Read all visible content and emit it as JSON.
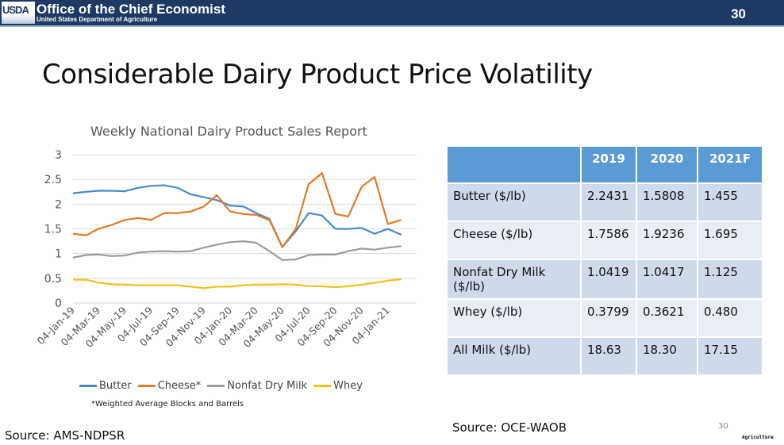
{
  "header": {
    "logo": "USDA",
    "org": "Office of the Chief Economist",
    "dept": "United States Department of Agriculture",
    "page": "30"
  },
  "slide_title": "Considerable Dairy Product Price Volatility",
  "chart_data": {
    "type": "line",
    "title": "Weekly National Dairy Product Sales Report",
    "xlabel": "",
    "ylabel": "",
    "ylim": [
      0,
      3
    ],
    "yticks": [
      "0",
      "0.5",
      "1",
      "1.5",
      "2",
      "2.5",
      "3"
    ],
    "xticks": [
      "04-Jan-19",
      "04-Mar-19",
      "04-May-19",
      "04-Jul-19",
      "04-Sep-19",
      "04-Nov-19",
      "04-Jan-20",
      "04-Mar-20",
      "04-May-20",
      "04-Jul-20",
      "04-Sep-20",
      "04-Nov-20",
      "04-Jan-21"
    ],
    "grid": true,
    "legend": "bottom",
    "x": [
      "2019-01-04",
      "2019-02-04",
      "2019-03-04",
      "2019-04-04",
      "2019-05-04",
      "2019-06-04",
      "2019-07-04",
      "2019-08-04",
      "2019-09-04",
      "2019-10-04",
      "2019-11-04",
      "2019-12-04",
      "2020-01-04",
      "2020-02-04",
      "2020-03-04",
      "2020-04-04",
      "2020-05-04",
      "2020-06-04",
      "2020-07-04",
      "2020-08-04",
      "2020-09-04",
      "2020-10-04",
      "2020-11-04",
      "2020-12-04",
      "2021-01-04",
      "2021-02-04"
    ],
    "series": [
      {
        "name": "Butter",
        "color": "#4a89c5",
        "values": [
          2.22,
          2.25,
          2.27,
          2.27,
          2.26,
          2.33,
          2.37,
          2.38,
          2.33,
          2.2,
          2.14,
          2.08,
          1.97,
          1.95,
          1.82,
          1.7,
          1.13,
          1.45,
          1.82,
          1.77,
          1.5,
          1.5,
          1.52,
          1.4,
          1.5,
          1.38
        ]
      },
      {
        "name": "Cheese*",
        "color": "#e07b2a",
        "values": [
          1.4,
          1.37,
          1.5,
          1.58,
          1.68,
          1.72,
          1.68,
          1.82,
          1.82,
          1.85,
          1.95,
          2.18,
          1.85,
          1.8,
          1.78,
          1.68,
          1.13,
          1.5,
          2.4,
          2.63,
          1.8,
          1.75,
          2.35,
          2.55,
          1.6,
          1.68
        ]
      },
      {
        "name": "Nonfat Dry Milk",
        "color": "#9b9b9b",
        "values": [
          0.92,
          0.97,
          0.98,
          0.95,
          0.96,
          1.02,
          1.04,
          1.05,
          1.04,
          1.05,
          1.12,
          1.18,
          1.23,
          1.25,
          1.22,
          1.05,
          0.87,
          0.88,
          0.97,
          0.98,
          0.98,
          1.05,
          1.1,
          1.08,
          1.12,
          1.15
        ]
      },
      {
        "name": "Whey",
        "color": "#f2c01e",
        "values": [
          0.47,
          0.47,
          0.41,
          0.38,
          0.37,
          0.36,
          0.36,
          0.36,
          0.36,
          0.33,
          0.3,
          0.33,
          0.33,
          0.36,
          0.37,
          0.37,
          0.38,
          0.37,
          0.34,
          0.34,
          0.32,
          0.34,
          0.37,
          0.41,
          0.45,
          0.48
        ]
      }
    ],
    "footnote": "*Weighted Average Blocks and Barrels"
  },
  "table": {
    "headers": [
      "",
      "2019",
      "2020",
      "2021F"
    ],
    "rows": [
      [
        "Butter ($/lb)",
        "2.2431",
        "1.5808",
        "1.455"
      ],
      [
        "Cheese ($/lb)",
        "1.7586",
        "1.9236",
        "1.695"
      ],
      [
        "Nonfat Dry Milk ($/lb)",
        "1.0419",
        "1.0417",
        "1.125"
      ],
      [
        "Whey ($/lb)",
        "0.3799",
        "0.3621",
        "0.480"
      ],
      [
        "All Milk ($/lb)",
        "18.63",
        "18.30",
        "17.15"
      ]
    ]
  },
  "source_left": "Source: AMS-NDPSR",
  "source_right": "Source: OCE-WAOB",
  "slide_number": "30",
  "corner_text": "Agriculture"
}
